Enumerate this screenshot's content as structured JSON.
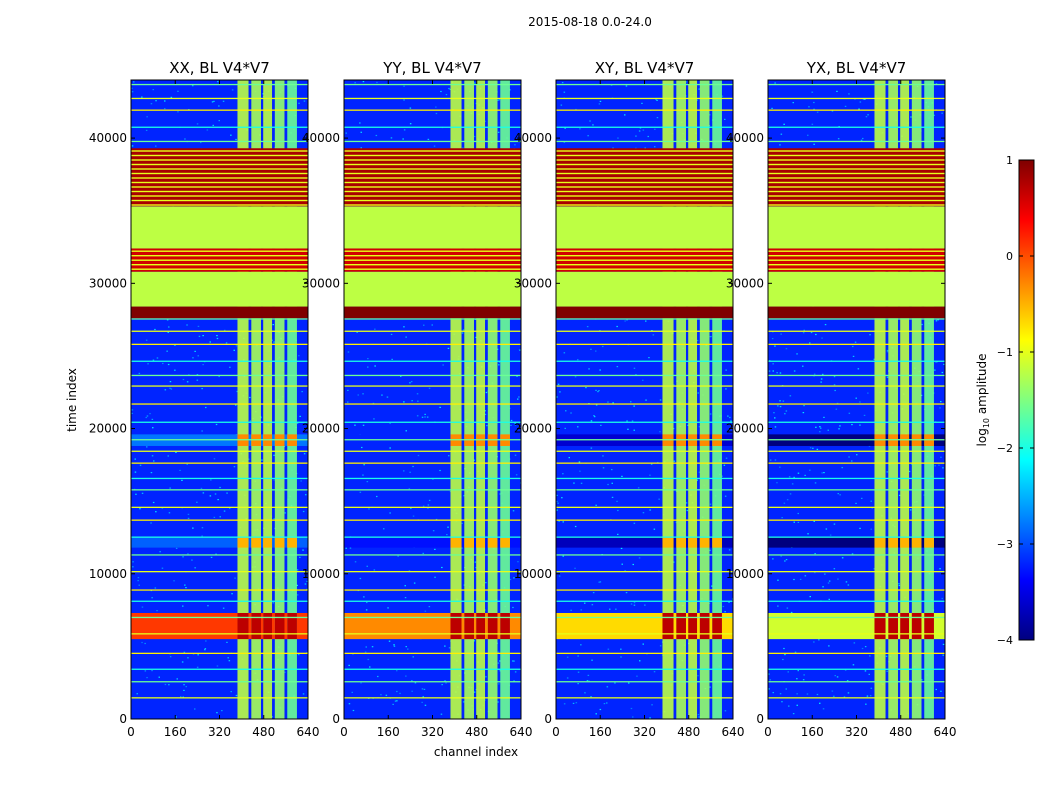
{
  "chart_data": {
    "type": "heatmap",
    "suptitle": "2015-08-18 0.0-24.0",
    "xlabel": "channel index",
    "ylabel": "time index",
    "xlim": [
      0,
      640
    ],
    "ylim": [
      0,
      44000
    ],
    "xticks": [
      0,
      160,
      320,
      480,
      640
    ],
    "yticks": [
      0,
      10000,
      20000,
      30000,
      40000
    ],
    "panels": [
      {
        "title": "XX, BL V4*V7"
      },
      {
        "title": "YY, BL V4*V7"
      },
      {
        "title": "XY, BL V4*V7"
      },
      {
        "title": "YX, BL V4*V7"
      }
    ],
    "colorbar": {
      "label": "log10 amplitude",
      "label_main": "log",
      "label_sub": "10",
      "label_tail": " amplitude",
      "range": [
        -4,
        1
      ],
      "ticks": [
        -4,
        -3,
        -2,
        -1,
        0,
        1
      ],
      "tick_labels": [
        "−4",
        "−3",
        "−2",
        "−1",
        "0",
        "1"
      ],
      "colors": [
        "#00007f",
        "#0000ff",
        "#0080ff",
        "#00ffff",
        "#80ff80",
        "#ffff00",
        "#ff8000",
        "#ff0000",
        "#7f0000"
      ]
    },
    "background_level": -3.2,
    "flagged_blocks": [
      {
        "t0": 27600,
        "t1": 28400,
        "level": 1.0
      },
      {
        "t0": 28400,
        "t1": 30800,
        "level": -1.2
      },
      {
        "t0": 30800,
        "t1": 32400,
        "level": 0.6,
        "striped": true
      },
      {
        "t0": 32400,
        "t1": 35300,
        "level": -1.2
      },
      {
        "t0": 35300,
        "t1": 39300,
        "level": 0.8,
        "striped": true
      }
    ],
    "rfi_channel_bands": [
      {
        "c0": 385,
        "c1": 425,
        "level": -1.2
      },
      {
        "c0": 435,
        "c1": 470,
        "level": -1.3
      },
      {
        "c0": 478,
        "c1": 510,
        "level": -1.2
      },
      {
        "c0": 520,
        "c1": 555,
        "level": -1.4
      },
      {
        "c0": 565,
        "c1": 600,
        "level": -1.6
      }
    ],
    "rfi_band_span": [
      400,
      600
    ],
    "bright_time_ranges": [
      {
        "t0": 5500,
        "t1": 7300,
        "level": 0.1,
        "bands_level": 0.7
      },
      {
        "t0": 18800,
        "t1": 19600,
        "level": -2.8,
        "bands_level": -0.3
      },
      {
        "t0": 11800,
        "t1": 12500,
        "level": -2.9,
        "bands_level": -0.5
      }
    ],
    "stripe_levels": [
      -1.0,
      -1.6,
      -2.0,
      -0.8
    ]
  }
}
